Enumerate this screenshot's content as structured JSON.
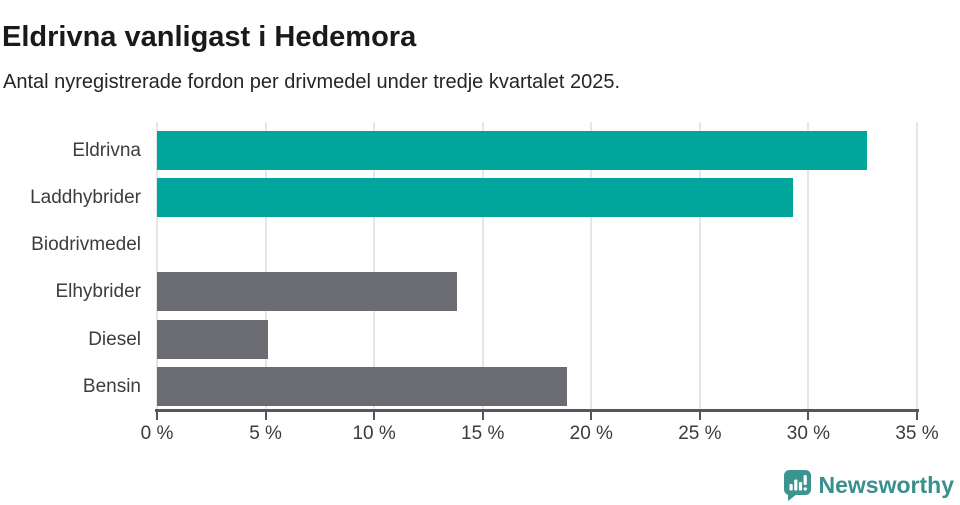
{
  "header": {
    "title": "Eldrivna vanligast i Hedemora",
    "subtitle": "Antal nyregistrerade fordon per drivmedel under tredje kvartalet 2025."
  },
  "chart_data": {
    "type": "bar",
    "orientation": "horizontal",
    "title": "Eldrivna vanligast i Hedemora",
    "subtitle": "Antal nyregistrerade fordon per drivmedel under tredje kvartalet 2025.",
    "categories": [
      "Eldrivna",
      "Laddhybrider",
      "Biodrivmedel",
      "Elhybrider",
      "Diesel",
      "Bensin"
    ],
    "values": [
      32.7,
      29.3,
      0,
      13.8,
      5.1,
      18.9
    ],
    "unit": "%",
    "xlim": [
      0,
      35
    ],
    "x_ticks": [
      0,
      5,
      10,
      15,
      20,
      25,
      30,
      35
    ],
    "x_tick_labels": [
      "0 %",
      "5 %",
      "10 %",
      "15 %",
      "20 %",
      "25 %",
      "30 %",
      "35 %"
    ],
    "bar_colors": [
      "#00a59b",
      "#00a59b",
      "#6b6b72",
      "#6b6b72",
      "#6b6b72",
      "#6b6b72"
    ],
    "grid": true,
    "legend": false,
    "colors": {
      "highlight": "#00a59b",
      "default": "#6b6b72",
      "gridline": "#e6e6e8",
      "axis": "#55555c",
      "label": "#3d3d3d"
    }
  },
  "footer": {
    "brand": "Newsworthy",
    "brand_color": "#38908c",
    "logo_icon": "bar-chart-speech-bubble-icon"
  }
}
